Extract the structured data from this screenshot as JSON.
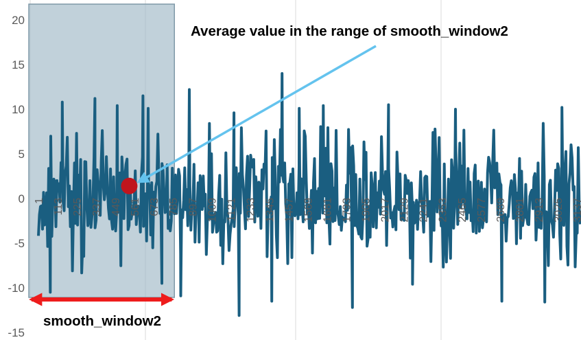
{
  "chart_data": {
    "type": "line",
    "title": "",
    "xlabel": "",
    "ylabel": "",
    "ylim": [
      -15,
      20
    ],
    "y_ticks": [
      -15,
      -10,
      -5,
      0,
      5,
      10,
      15,
      20
    ],
    "x_tick_labels": [
      "1",
      "113",
      "225",
      "337",
      "449",
      "561",
      "673",
      "785",
      "897",
      "1009",
      "1121",
      "1233",
      "1345",
      "1457",
      "1569",
      "1681",
      "1793",
      "1905",
      "2017",
      "2129",
      "2241",
      "2353",
      "2465",
      "2577",
      "2689",
      "2801",
      "2913",
      "3025",
      "3137"
    ],
    "x_count": 3160,
    "grid": {
      "vertical": true,
      "horizontal": false
    },
    "series": [
      {
        "name": "",
        "color": "#1a5e80",
        "mean": 0,
        "typical_range": [
          -5,
          5
        ],
        "peaks": [
          {
            "x": 140,
            "y": 10.8
          },
          {
            "x": 330,
            "y": 11.2
          },
          {
            "x": 460,
            "y": 10.4
          },
          {
            "x": 610,
            "y": 11.5
          },
          {
            "x": 640,
            "y": 10.1
          },
          {
            "x": 880,
            "y": 12.2
          },
          {
            "x": 1140,
            "y": 9.6
          },
          {
            "x": 1420,
            "y": 14.0
          },
          {
            "x": 1520,
            "y": 10.1
          },
          {
            "x": 1660,
            "y": 10.4
          },
          {
            "x": 2040,
            "y": 10.5
          },
          {
            "x": 2430,
            "y": 10.0
          },
          {
            "x": 3050,
            "y": 10.2
          }
        ],
        "troughs": [
          {
            "x": 70,
            "y": -10.5
          },
          {
            "x": 720,
            "y": -9.5
          },
          {
            "x": 830,
            "y": -10.9
          },
          {
            "x": 1170,
            "y": -13.1
          },
          {
            "x": 1360,
            "y": -11.5
          },
          {
            "x": 1830,
            "y": -12.2
          },
          {
            "x": 2180,
            "y": -9.6
          },
          {
            "x": 2700,
            "y": -11.5
          },
          {
            "x": 2950,
            "y": -11.6
          }
        ]
      }
    ],
    "highlight_range": {
      "x_start": 1,
      "x_end": 785
    },
    "annotations": {
      "average_label": "Average value in the range of smooth_window2",
      "average_point": {
        "x": 530,
        "y": 1.4
      },
      "window_label": "smooth_window2"
    },
    "colors": {
      "line": "#1a5e80",
      "highlight_fill": "#9fb8c6",
      "highlight_border": "#7f99a8",
      "average_marker": "#c0151d",
      "pointer_arrow": "#64c3ee",
      "window_arrow": "#ee1c1c",
      "grid": "#d9d9d9",
      "tick_text": "#595959"
    }
  }
}
